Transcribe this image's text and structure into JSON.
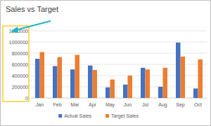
{
  "chart_data": {
    "type": "bar",
    "title": "Sales vs Target",
    "categories": [
      "Jan",
      "Feb",
      "Mar",
      "Apr",
      "May",
      "Jun",
      "Jul",
      "Aug",
      "Sep",
      "Oct"
    ],
    "series": [
      {
        "name": "Actual Sales",
        "color": "#4472c4",
        "values": [
          700000,
          570000,
          510000,
          580000,
          190000,
          240000,
          540000,
          200000,
          990000,
          170000
        ]
      },
      {
        "name": "Target Sales",
        "color": "#ed7d31",
        "values": [
          820000,
          730000,
          770000,
          500000,
          330000,
          400000,
          510000,
          540000,
          740000,
          690000
        ]
      }
    ],
    "ylim": [
      0,
      1200000
    ],
    "yticks": [
      0,
      200000,
      400000,
      600000,
      800000,
      1000000,
      1200000
    ],
    "grid": true,
    "legend": "bottom"
  }
}
